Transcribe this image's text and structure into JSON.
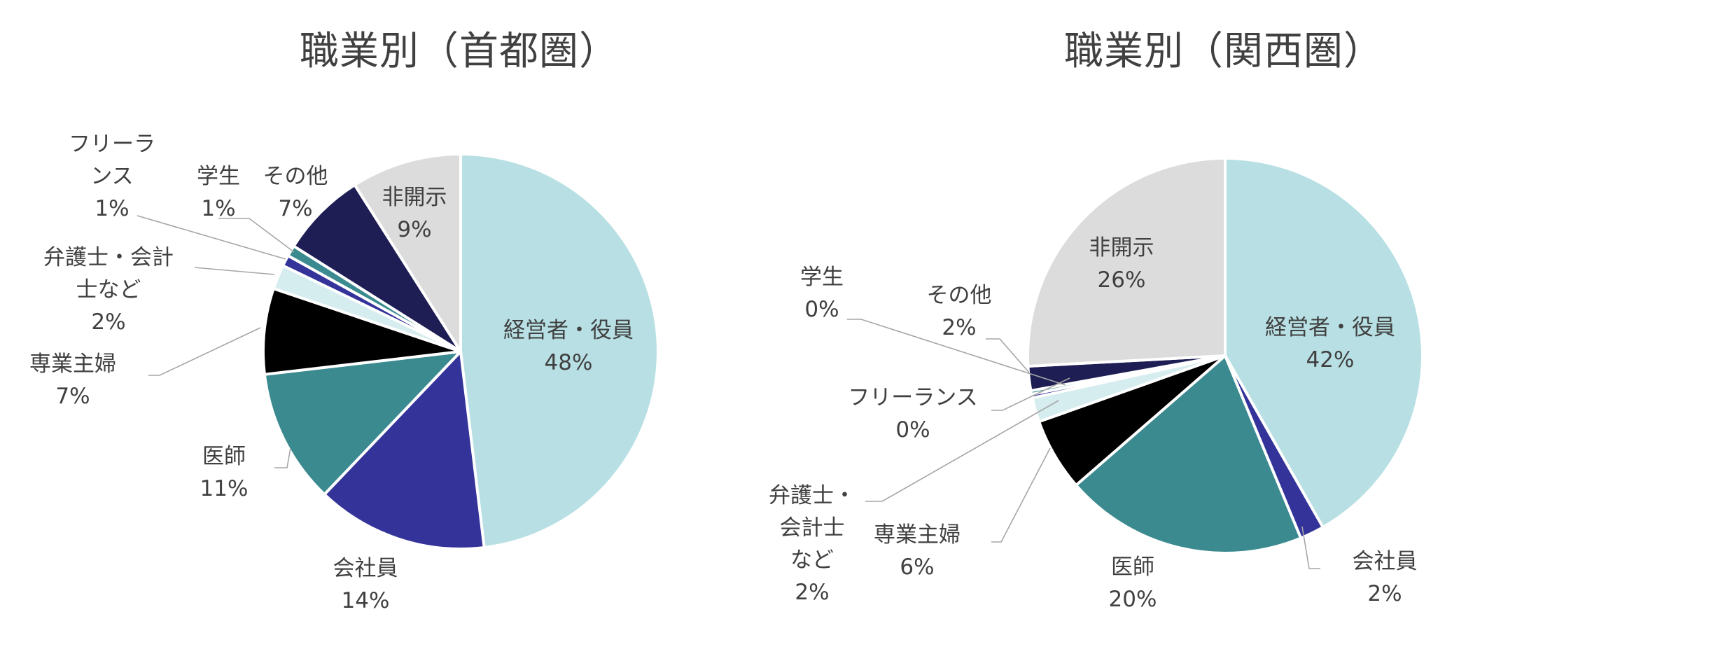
{
  "chart_data": [
    {
      "type": "pie",
      "title": "職業別（首都圏）",
      "slices": [
        {
          "label": "経営者・役員",
          "value": 48,
          "pct": "48%",
          "color": "#b8e0e4"
        },
        {
          "label": "会社員",
          "value": 14,
          "pct": "14%",
          "color": "#333399"
        },
        {
          "label": "医師",
          "value": 11,
          "pct": "11%",
          "color": "#3a8a8f"
        },
        {
          "label": "専業主婦",
          "value": 7,
          "pct": "7%",
          "color": "#000000"
        },
        {
          "label": "弁護士・会計士など",
          "value": 2,
          "pct": "2%",
          "color": "#d6edef"
        },
        {
          "label": "フリーランス",
          "value": 1,
          "pct": "1%",
          "color": "#333399"
        },
        {
          "label": "学生",
          "value": 1,
          "pct": "1%",
          "color": "#3a8a8f"
        },
        {
          "label": "その他",
          "value": 7,
          "pct": "7%",
          "color": "#1e1e55"
        },
        {
          "label": "非開示",
          "value": 9,
          "pct": "9%",
          "color": "#dcdcdc"
        }
      ]
    },
    {
      "type": "pie",
      "title": "職業別（関西圏）",
      "slices": [
        {
          "label": "経営者・役員",
          "value": 42,
          "pct": "42%",
          "color": "#b8e0e4"
        },
        {
          "label": "会社員",
          "value": 2,
          "pct": "2%",
          "color": "#333399"
        },
        {
          "label": "医師",
          "value": 20,
          "pct": "20%",
          "color": "#3a8a8f"
        },
        {
          "label": "専業主婦",
          "value": 6,
          "pct": "6%",
          "color": "#000000"
        },
        {
          "label": "弁護士・会計士など",
          "value": 2,
          "pct": "2%",
          "color": "#d6edef"
        },
        {
          "label": "フリーランス",
          "value": 0,
          "pct": "0%",
          "color": "#333399"
        },
        {
          "label": "学生",
          "value": 0,
          "pct": "0%",
          "color": "#3a8a8f"
        },
        {
          "label": "その他",
          "value": 2,
          "pct": "2%",
          "color": "#1e1e55"
        },
        {
          "label": "非開示",
          "value": 26,
          "pct": "26%",
          "color": "#dcdcdc"
        }
      ]
    }
  ]
}
